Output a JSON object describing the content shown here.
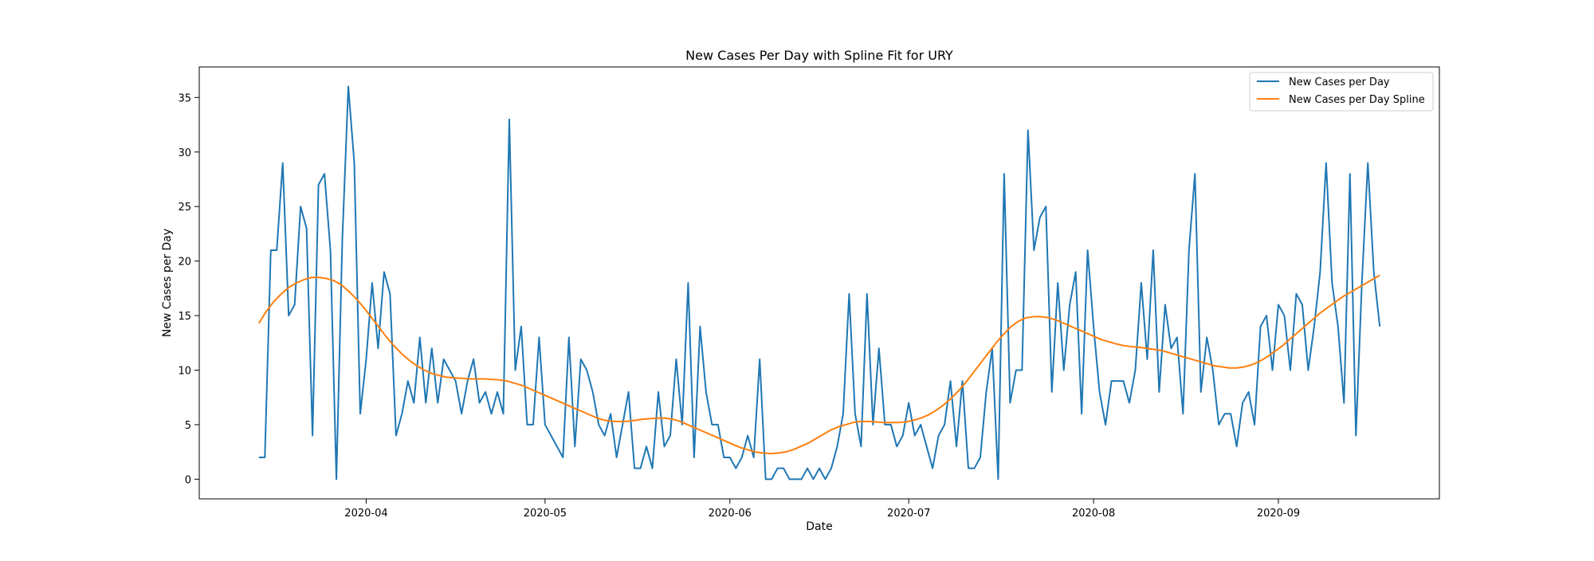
{
  "chart_data": {
    "type": "line",
    "title": "New Cases Per Day with Spline Fit for URY",
    "xlabel": "Date",
    "ylabel": "New Cases per Day",
    "x_tick_labels": [
      "2020-04",
      "2020-05",
      "2020-06",
      "2020-07",
      "2020-08",
      "2020-09"
    ],
    "x_tick_dates": [
      "2020-04-01",
      "2020-05-01",
      "2020-06-01",
      "2020-07-01",
      "2020-08-01",
      "2020-09-01"
    ],
    "y_ticks": [
      0,
      5,
      10,
      15,
      20,
      25,
      30,
      35
    ],
    "xlim": [
      "2020-03-04",
      "2020-09-28"
    ],
    "ylim": [
      -1.8,
      37.8
    ],
    "grid": false,
    "legend_position": "top-right",
    "x_start_date": "2020-03-14",
    "series": [
      {
        "name": "New Cases per Day",
        "color": "#1f77b4",
        "values": [
          2,
          2,
          21,
          21,
          29,
          15,
          16,
          25,
          23,
          4,
          27,
          28,
          21,
          0,
          22,
          36,
          29,
          6,
          11,
          18,
          12,
          19,
          17,
          4,
          6,
          9,
          7,
          13,
          7,
          12,
          7,
          11,
          10,
          9,
          6,
          9,
          11,
          7,
          8,
          6,
          8,
          6,
          33,
          10,
          14,
          5,
          5,
          13,
          5,
          4,
          3,
          2,
          13,
          3,
          11,
          10,
          8,
          5,
          4,
          6,
          2,
          5,
          8,
          1,
          1,
          3,
          1,
          8,
          3,
          4,
          11,
          5,
          18,
          2,
          14,
          8,
          5,
          5,
          2,
          2,
          1,
          2,
          4,
          2,
          11,
          0,
          0,
          1,
          1,
          0,
          0,
          0,
          1,
          0,
          1,
          0,
          1,
          3,
          6,
          17,
          6,
          3,
          17,
          5,
          12,
          5,
          5,
          3,
          4,
          7,
          4,
          5,
          3,
          1,
          4,
          5,
          9,
          3,
          9,
          1,
          1,
          2,
          8,
          12,
          0,
          28,
          7,
          10,
          10,
          32,
          21,
          24,
          25,
          8,
          18,
          10,
          16,
          19,
          6,
          21,
          14,
          8,
          5,
          9,
          9,
          9,
          7,
          10,
          18,
          11,
          21,
          8,
          16,
          12,
          13,
          6,
          21,
          28,
          8,
          13,
          10,
          5,
          6,
          6,
          3,
          7,
          8,
          5,
          14,
          15,
          10,
          16,
          15,
          10,
          17,
          16,
          10,
          14,
          19,
          29,
          18,
          14,
          7,
          28,
          4,
          18,
          29,
          19,
          14
        ]
      },
      {
        "name": "New Cases per Day Spline",
        "color": "#ff7f0e",
        "values": [
          14.3,
          15.4,
          16.3,
          17.0,
          17.6,
          18.0,
          18.3,
          18.5,
          18.5,
          18.4,
          18.2,
          17.8,
          17.2,
          16.5,
          15.7,
          14.8,
          13.9,
          13.0,
          12.2,
          11.5,
          10.9,
          10.4,
          10.0,
          9.7,
          9.5,
          9.35,
          9.3,
          9.25,
          9.2,
          9.2,
          9.2,
          9.15,
          9.1,
          9.0,
          8.8,
          8.6,
          8.3,
          8.0,
          7.7,
          7.4,
          7.1,
          6.8,
          6.5,
          6.2,
          5.9,
          5.6,
          5.4,
          5.3,
          5.3,
          5.3,
          5.4,
          5.5,
          5.55,
          5.6,
          5.6,
          5.5,
          5.3,
          5.0,
          4.7,
          4.4,
          4.1,
          3.8,
          3.5,
          3.2,
          2.9,
          2.7,
          2.5,
          2.4,
          2.35,
          2.4,
          2.5,
          2.7,
          3.0,
          3.3,
          3.7,
          4.1,
          4.5,
          4.8,
          5.0,
          5.2,
          5.3,
          5.3,
          5.25,
          5.2,
          5.2,
          5.2,
          5.25,
          5.4,
          5.6,
          5.9,
          6.3,
          6.8,
          7.4,
          8.1,
          8.9,
          9.8,
          10.7,
          11.6,
          12.5,
          13.3,
          14.0,
          14.5,
          14.8,
          14.9,
          14.9,
          14.8,
          14.6,
          14.3,
          14.0,
          13.7,
          13.4,
          13.1,
          12.8,
          12.6,
          12.4,
          12.25,
          12.15,
          12.1,
          12.0,
          11.9,
          11.8,
          11.6,
          11.4,
          11.2,
          11.0,
          10.8,
          10.6,
          10.4,
          10.3,
          10.2,
          10.2,
          10.3,
          10.5,
          10.8,
          11.2,
          11.7,
          12.2,
          12.8,
          13.4,
          14.0,
          14.6,
          15.2,
          15.7,
          16.2,
          16.7,
          17.1,
          17.5,
          17.9,
          18.3,
          18.7
        ]
      }
    ]
  }
}
